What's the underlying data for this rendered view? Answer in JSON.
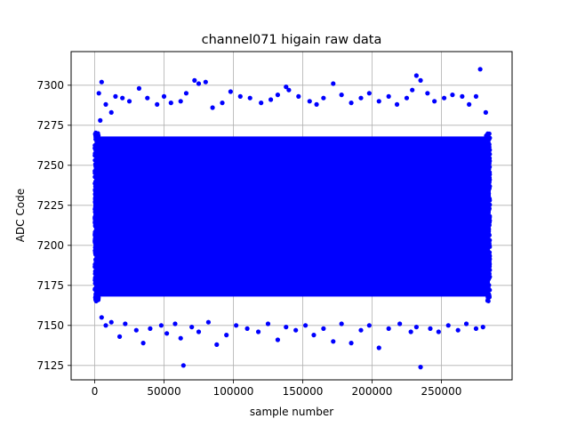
{
  "chart_data": {
    "type": "scatter",
    "title": "channel071 higain raw data",
    "xlabel": "sample number",
    "ylabel": "ADC Code",
    "xlim": [
      -17000,
      301000
    ],
    "ylim": [
      7116,
      7321
    ],
    "x_ticks": [
      0,
      50000,
      100000,
      150000,
      200000,
      250000
    ],
    "x_tick_labels": [
      "0",
      "50000",
      "100000",
      "150000",
      "200000",
      "250000"
    ],
    "y_ticks": [
      7125,
      7150,
      7175,
      7200,
      7225,
      7250,
      7275,
      7300
    ],
    "y_tick_labels": [
      "7125",
      "7150",
      "7175",
      "7200",
      "7225",
      "7250",
      "7275",
      "7300"
    ],
    "grid": true,
    "marker_color": "#0000ff",
    "series": [
      {
        "x_range": [
          0,
          285000
        ],
        "dense_band": [
          7165,
          7271
        ],
        "outlier_points": [
          [
            3000,
            7295
          ],
          [
            4000,
            7278
          ],
          [
            5000,
            7302
          ],
          [
            8000,
            7288
          ],
          [
            12000,
            7283
          ],
          [
            15000,
            7293
          ],
          [
            20000,
            7292
          ],
          [
            25000,
            7290
          ],
          [
            32000,
            7298
          ],
          [
            38000,
            7292
          ],
          [
            45000,
            7288
          ],
          [
            50000,
            7293
          ],
          [
            55000,
            7289
          ],
          [
            62000,
            7290
          ],
          [
            66000,
            7295
          ],
          [
            72000,
            7303
          ],
          [
            75000,
            7301
          ],
          [
            80000,
            7302
          ],
          [
            85000,
            7286
          ],
          [
            92000,
            7289
          ],
          [
            98000,
            7296
          ],
          [
            105000,
            7293
          ],
          [
            112000,
            7292
          ],
          [
            120000,
            7289
          ],
          [
            127000,
            7291
          ],
          [
            132000,
            7294
          ],
          [
            138000,
            7299
          ],
          [
            140000,
            7297
          ],
          [
            147000,
            7293
          ],
          [
            155000,
            7290
          ],
          [
            160000,
            7288
          ],
          [
            165000,
            7292
          ],
          [
            172000,
            7301
          ],
          [
            178000,
            7294
          ],
          [
            185000,
            7289
          ],
          [
            192000,
            7292
          ],
          [
            198000,
            7295
          ],
          [
            205000,
            7290
          ],
          [
            212000,
            7293
          ],
          [
            218000,
            7288
          ],
          [
            225000,
            7292
          ],
          [
            229000,
            7297
          ],
          [
            232000,
            7306
          ],
          [
            235000,
            7303
          ],
          [
            240000,
            7295
          ],
          [
            245000,
            7290
          ],
          [
            252000,
            7292
          ],
          [
            258000,
            7294
          ],
          [
            265000,
            7293
          ],
          [
            270000,
            7288
          ],
          [
            275000,
            7293
          ],
          [
            278000,
            7310
          ],
          [
            282000,
            7283
          ],
          [
            5000,
            7155
          ],
          [
            8000,
            7150
          ],
          [
            12000,
            7152
          ],
          [
            18000,
            7143
          ],
          [
            22000,
            7151
          ],
          [
            30000,
            7147
          ],
          [
            35000,
            7139
          ],
          [
            40000,
            7148
          ],
          [
            48000,
            7150
          ],
          [
            52000,
            7145
          ],
          [
            58000,
            7151
          ],
          [
            62000,
            7142
          ],
          [
            64000,
            7125
          ],
          [
            70000,
            7149
          ],
          [
            75000,
            7146
          ],
          [
            82000,
            7152
          ],
          [
            88000,
            7138
          ],
          [
            95000,
            7144
          ],
          [
            102000,
            7150
          ],
          [
            110000,
            7148
          ],
          [
            118000,
            7146
          ],
          [
            125000,
            7151
          ],
          [
            132000,
            7141
          ],
          [
            138000,
            7149
          ],
          [
            145000,
            7147
          ],
          [
            152000,
            7150
          ],
          [
            158000,
            7144
          ],
          [
            165000,
            7148
          ],
          [
            172000,
            7140
          ],
          [
            178000,
            7151
          ],
          [
            185000,
            7139
          ],
          [
            192000,
            7147
          ],
          [
            198000,
            7150
          ],
          [
            205000,
            7136
          ],
          [
            212000,
            7148
          ],
          [
            220000,
            7151
          ],
          [
            228000,
            7146
          ],
          [
            232000,
            7149
          ],
          [
            235000,
            7124
          ],
          [
            242000,
            7148
          ],
          [
            248000,
            7146
          ],
          [
            255000,
            7150
          ],
          [
            262000,
            7147
          ],
          [
            268000,
            7151
          ],
          [
            275000,
            7148
          ],
          [
            280000,
            7149
          ]
        ]
      }
    ]
  }
}
